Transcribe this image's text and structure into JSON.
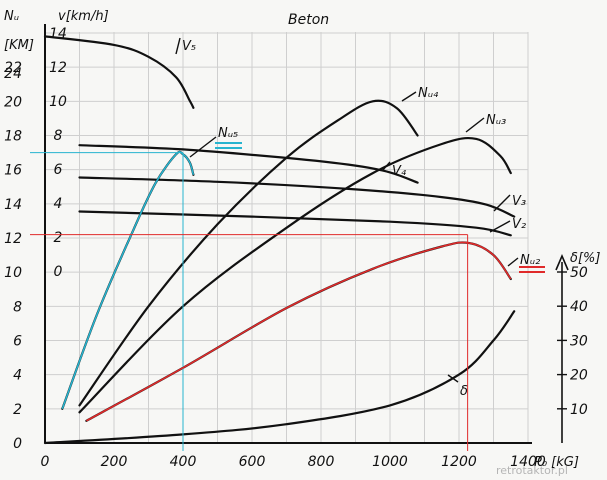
{
  "chart_data": {
    "type": "line",
    "title": "Beton",
    "xlabel": "P₀ [kG]",
    "x_ticks": [
      "0",
      "200",
      "400",
      "600",
      "800",
      "1000",
      "1200",
      "1400"
    ],
    "xlim": [
      0,
      1400
    ],
    "axes": {
      "Nu": {
        "label_line1": "Nᵤ",
        "label_line2": "[KM]",
        "ticks": [
          "0",
          "2",
          "4",
          "6",
          "8",
          "10",
          "12",
          "14",
          "16",
          "18",
          "20",
          "22",
          "24"
        ],
        "range": [
          0,
          24
        ]
      },
      "v": {
        "label": "v[km/h]",
        "ticks": [
          "0",
          "2",
          "4",
          "6",
          "8",
          "10",
          "12",
          "14"
        ],
        "range": [
          0,
          14
        ]
      },
      "delta": {
        "label": "δ[%]",
        "ticks": [
          "10",
          "20",
          "30",
          "40",
          "50"
        ],
        "range": [
          0,
          50
        ]
      }
    },
    "series": [
      {
        "name": "V₅",
        "axis": "v",
        "points": [
          [
            0,
            13.8
          ],
          [
            200,
            13.3
          ],
          [
            300,
            12.6
          ],
          [
            380,
            11.4
          ],
          [
            420,
            10.0
          ],
          [
            430,
            9.6
          ]
        ]
      },
      {
        "name": "V₄",
        "axis": "v",
        "points": [
          [
            100,
            7.4
          ],
          [
            400,
            7.15
          ],
          [
            700,
            6.65
          ],
          [
            900,
            6.2
          ],
          [
            1000,
            5.8
          ],
          [
            1080,
            5.2
          ]
        ]
      },
      {
        "name": "V₃",
        "axis": "v",
        "points": [
          [
            100,
            5.5
          ],
          [
            500,
            5.25
          ],
          [
            900,
            4.8
          ],
          [
            1150,
            4.35
          ],
          [
            1280,
            3.9
          ],
          [
            1360,
            3.2
          ]
        ]
      },
      {
        "name": "V₂",
        "axis": "v",
        "points": [
          [
            100,
            3.5
          ],
          [
            600,
            3.2
          ],
          [
            1000,
            2.9
          ],
          [
            1250,
            2.55
          ],
          [
            1350,
            2.1
          ]
        ]
      },
      {
        "name": "Nᵤ₅",
        "axis": "Nu",
        "points": [
          [
            50,
            2.0
          ],
          [
            150,
            7.5
          ],
          [
            250,
            12.2
          ],
          [
            320,
            15.2
          ],
          [
            380,
            16.9
          ],
          [
            400,
            16.9
          ],
          [
            420,
            16.4
          ],
          [
            430,
            15.7
          ]
        ]
      },
      {
        "name": "Nᵤ₄",
        "axis": "Nu",
        "points": [
          [
            100,
            2.2
          ],
          [
            300,
            8.0
          ],
          [
            500,
            12.8
          ],
          [
            700,
            16.7
          ],
          [
            850,
            18.9
          ],
          [
            950,
            20.0
          ],
          [
            1020,
            19.6
          ],
          [
            1080,
            18.0
          ]
        ]
      },
      {
        "name": "Nᵤ₃",
        "axis": "Nu",
        "points": [
          [
            100,
            1.8
          ],
          [
            400,
            8.0
          ],
          [
            700,
            12.6
          ],
          [
            950,
            15.8
          ],
          [
            1150,
            17.5
          ],
          [
            1250,
            17.8
          ],
          [
            1320,
            16.8
          ],
          [
            1350,
            15.8
          ]
        ]
      },
      {
        "name": "Nᵤ₂",
        "axis": "Nu",
        "points": [
          [
            120,
            1.3
          ],
          [
            400,
            4.4
          ],
          [
            700,
            7.9
          ],
          [
            950,
            10.2
          ],
          [
            1150,
            11.5
          ],
          [
            1230,
            11.7
          ],
          [
            1300,
            11.0
          ],
          [
            1350,
            9.6
          ]
        ]
      },
      {
        "name": "δ",
        "axis": "delta",
        "points": [
          [
            0,
            0
          ],
          [
            400,
            2.5
          ],
          [
            700,
            5.5
          ],
          [
            1000,
            11
          ],
          [
            1200,
            20
          ],
          [
            1300,
            30
          ],
          [
            1360,
            38.5
          ]
        ]
      }
    ],
    "highlights": [
      {
        "series": "Nᵤ₅",
        "color": "#27b4cf",
        "x": 400,
        "y": 17
      },
      {
        "series": "Nᵤ₂",
        "color": "#e02a2a",
        "x": 1225,
        "y": 12.2
      }
    ],
    "colors": {
      "cyan": "#27b4cf",
      "red": "#e02a2a",
      "grid": "#cfcfcf",
      "ink": "#111111"
    }
  },
  "watermark": "retrotaktor.pl"
}
